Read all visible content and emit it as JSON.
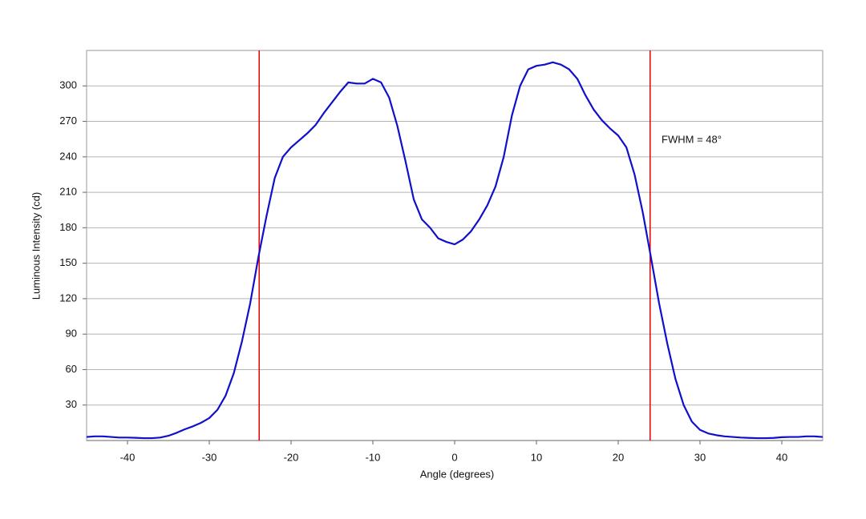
{
  "chart_data": {
    "type": "line",
    "x_label": "Angle (degrees)",
    "y_label": "Luminous Intensity (cd)",
    "xlim": [
      -45,
      45
    ],
    "xticks": [
      -40,
      -30,
      -20,
      -10,
      0,
      10,
      20,
      30,
      40
    ],
    "ylim": [
      0,
      330
    ],
    "yticks": [
      30,
      60,
      90,
      120,
      150,
      180,
      210,
      240,
      270,
      300
    ],
    "grid": true,
    "x": [
      -45,
      -44,
      -43,
      -42,
      -41,
      -40,
      -39,
      -38,
      -37,
      -36,
      -35,
      -34,
      -33,
      -32,
      -31,
      -30,
      -29,
      -28,
      -27,
      -26,
      -25,
      -24,
      -23,
      -22,
      -21,
      -20,
      -19,
      -18,
      -17,
      -16,
      -15,
      -14,
      -13,
      -12,
      -11,
      -10,
      -9,
      -8,
      -7,
      -6,
      -5,
      -4,
      -3,
      -2,
      -1,
      0,
      1,
      2,
      3,
      4,
      5,
      6,
      7,
      8,
      9,
      10,
      11,
      12,
      13,
      14,
      15,
      16,
      17,
      18,
      19,
      20,
      21,
      22,
      23,
      24,
      25,
      26,
      27,
      28,
      29,
      30,
      31,
      32,
      33,
      34,
      35,
      36,
      37,
      38,
      39,
      40,
      41,
      42,
      43,
      44,
      45
    ],
    "series": [
      {
        "name": "Luminous Intensity",
        "color": "#1010cc",
        "values": [
          3,
          3.5,
          3.5,
          3,
          2.5,
          2.5,
          2.3,
          2,
          2,
          2.5,
          4,
          6.5,
          9.5,
          12,
          15,
          19,
          26,
          38,
          57,
          84,
          116,
          155,
          190,
          222,
          240,
          248,
          254,
          260,
          267,
          277,
          286,
          295,
          303,
          302,
          302,
          306,
          303,
          290,
          266,
          236,
          204,
          187,
          180,
          171,
          168,
          166,
          170,
          177,
          187,
          199,
          215,
          240,
          275,
          300,
          314,
          317,
          318,
          320,
          318,
          314,
          306,
          292,
          280,
          271,
          264,
          258,
          248,
          225,
          193,
          155,
          116,
          82,
          52,
          30,
          16,
          9,
          6,
          4.5,
          3.5,
          3,
          2.5,
          2.2,
          2,
          2,
          2.2,
          2.8,
          3,
          3,
          3.5,
          3.5,
          3
        ]
      }
    ],
    "markers": {
      "color": "#e00000",
      "x": [
        -23.9,
        23.9
      ]
    },
    "annotation": {
      "text": "FWHM = 48°",
      "x": 25.3,
      "y": 254
    }
  }
}
